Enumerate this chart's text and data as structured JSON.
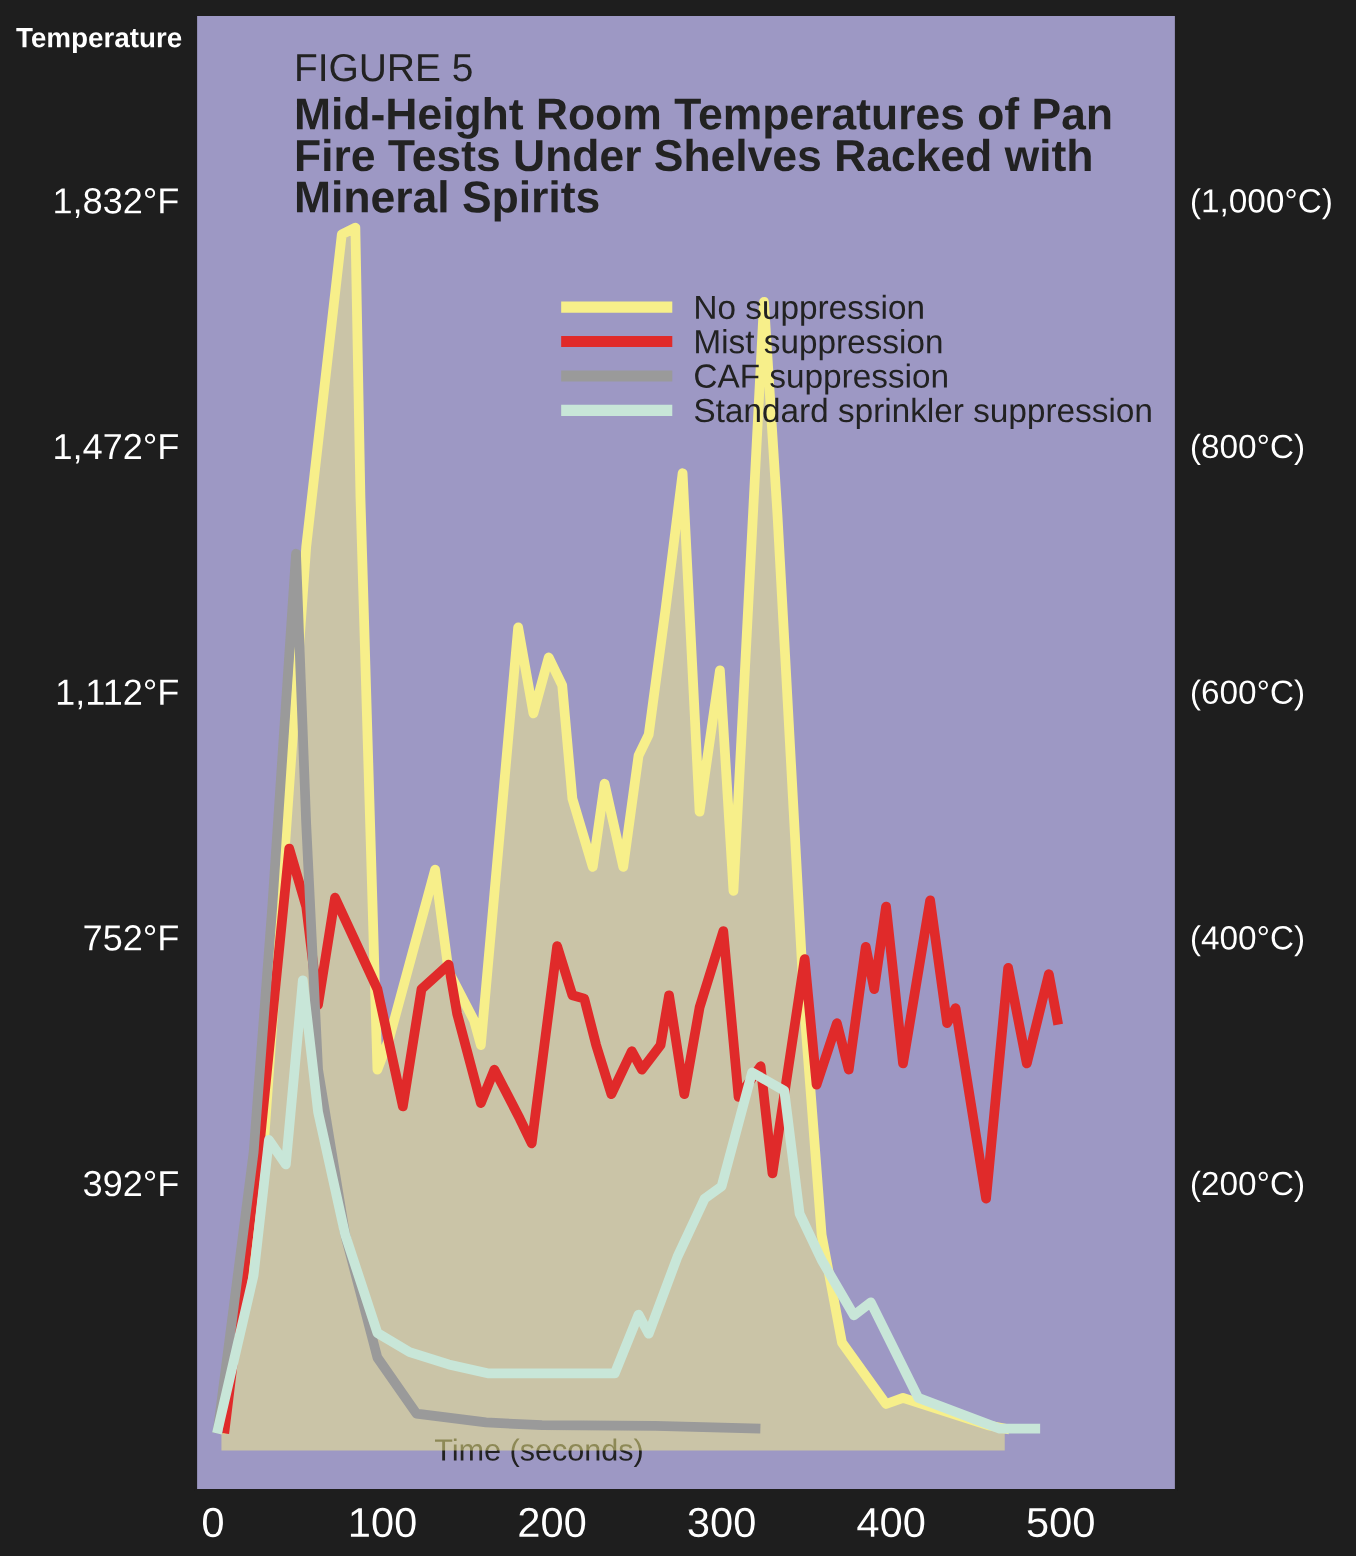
{
  "chart_data": {
    "type": "line",
    "title": "FIGURE 5",
    "subtitle": "Mid-Height Room Temperatures of Pan\nFire Tests Under Shelves Racked with\nMineral Spirits",
    "xlabel": "Time (seconds)",
    "ylabel": "Temperature",
    "xlim": [
      -10,
      568
    ],
    "xticks": [
      0,
      100,
      200,
      300,
      400,
      500
    ],
    "ylim": [
      -58,
      2102
    ],
    "yticks": [
      {
        "value": 392,
        "label": "392°F"
      },
      {
        "value": 752,
        "label": "752°F"
      },
      {
        "value": 1112,
        "label": "1,112°F"
      },
      {
        "value": 1472,
        "label": "1,472°F"
      },
      {
        "value": 1832,
        "label": "1,832°F"
      }
    ],
    "y2lim": [
      -50,
      1150
    ],
    "y2ticks": [
      {
        "value": 200,
        "label": "(200°C)"
      },
      {
        "value": 400,
        "label": "(400°C)"
      },
      {
        "value": 600,
        "label": "(600°C)"
      },
      {
        "value": 800,
        "label": "(800°C)"
      },
      {
        "value": 1000,
        "label": "(1,000°C)"
      }
    ],
    "grid": false,
    "legend": "top right",
    "line_style": "solid",
    "marker": "none",
    "series": [
      {
        "name": "No suppression",
        "type": "area",
        "color": "#f7ef8a",
        "x": [
          5,
          28,
          55,
          76,
          84,
          87,
          97,
          104,
          131,
          139,
          154,
          158,
          180,
          189,
          198,
          206,
          212,
          224,
          231,
          242,
          251,
          257,
          267,
          277,
          287,
          299,
          307,
          325,
          333,
          349,
          359,
          371,
          397,
          407,
          457,
          467
        ],
        "values": [
          32,
          378,
          1324,
          1782,
          1792,
          1396,
          558,
          604,
          851,
          702,
          630,
          594,
          1206,
          1080,
          1162,
          1121,
          955,
          855,
          977,
          855,
          1018,
          1049,
          1234,
          1432,
          936,
          1143,
          820,
          1683,
          1369,
          639,
          316,
          158,
          68,
          77,
          37,
          32
        ]
      },
      {
        "name": "Mist suppression",
        "color": "#e02a2a",
        "x": [
          7,
          28,
          45,
          55,
          62,
          72,
          97,
          112,
          123,
          139,
          144,
          158,
          166,
          181,
          188,
          203,
          212,
          219,
          226,
          235,
          247,
          253,
          264,
          269,
          278,
          287,
          301,
          310,
          323,
          330,
          349,
          356,
          368,
          375,
          385,
          390,
          397,
          407,
          423,
          433,
          438,
          456,
          469,
          480,
          493,
          498
        ],
        "values": [
          32,
          460,
          882,
          797,
          653,
          810,
          676,
          504,
          676,
          712,
          640,
          509,
          558,
          486,
          450,
          739,
          667,
          662,
          594,
          522,
          585,
          558,
          594,
          667,
          522,
          649,
          761,
          518,
          563,
          406,
          720,
          536,
          626,
          558,
          738,
          676,
          797,
          567,
          806,
          626,
          648,
          369,
          707,
          567,
          698,
          631
        ]
      },
      {
        "name": "CAF suppression",
        "color": "#9a9a9a",
        "x": [
          3,
          24,
          35,
          49,
          55,
          62,
          78,
          97,
          120,
          161,
          194,
          261,
          320
        ],
        "values": [
          32,
          437,
          797,
          1314,
          918,
          558,
          316,
          136,
          54,
          41,
          37,
          36,
          32
        ]
      },
      {
        "name": "Standard sprinkler suppression",
        "color": "#c8e6d8",
        "x": [
          3,
          24,
          33,
          43,
          53,
          62,
          78,
          97,
          116,
          139,
          162,
          237,
          251,
          257,
          274,
          290,
          300,
          318,
          337,
          346,
          359,
          378,
          388,
          416,
          464,
          485
        ],
        "values": [
          32,
          257,
          455,
          419,
          689,
          496,
          316,
          172,
          144,
          126,
          113,
          113,
          199,
          171,
          284,
          369,
          387,
          554,
          527,
          347,
          279,
          198,
          217,
          77,
          32,
          32
        ]
      }
    ]
  }
}
